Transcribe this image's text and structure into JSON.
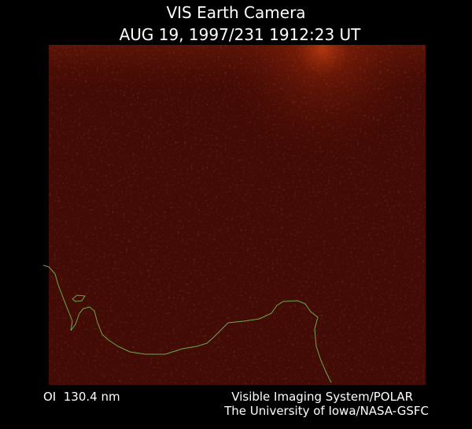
{
  "header": {
    "title": "VIS Earth Camera",
    "timestamp": "AUG 19, 1997/231 1912:23 UT"
  },
  "footer": {
    "filter": "OI  130.4 nm",
    "credit_line1": "Visible Imaging System/POLAR",
    "credit_line2": "The University of Iowa/NASA-GSFC"
  }
}
